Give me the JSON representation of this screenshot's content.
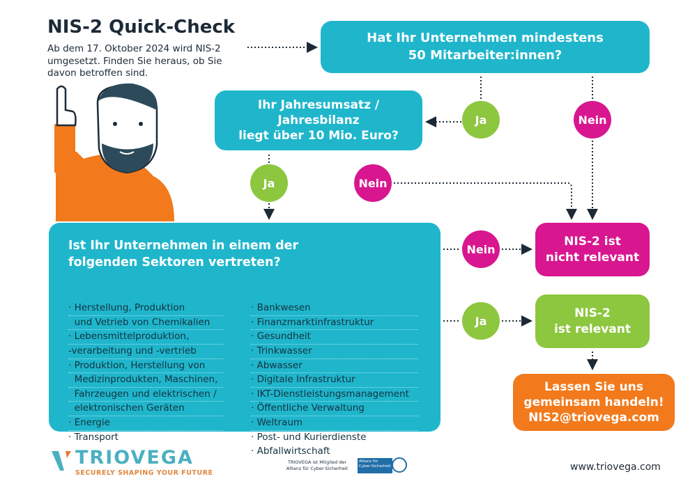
{
  "title": "NIS-2 Quick-Check",
  "subtitle": "Ab dem 17. Oktober 2024 wird NIS-2 umgesetzt. Finden Sie heraus, ob Sie davon betroffen sind.",
  "q1": [
    "Hat Ihr Unternehmen mindestens",
    "50 Mitarbeiter:innen?"
  ],
  "q2": [
    "Ihr Jahresumsatz /",
    "Jahresbilanz",
    "liegt über 10 Mio. Euro?"
  ],
  "q3": [
    "Ist Ihr Unternehmen in einem der",
    "folgenden Sektoren vertreten?"
  ],
  "yes": "Ja",
  "no": "Nein",
  "sectors_left": [
    "· Herstellung, Produktion",
    "  und Vetrieb von Chemikalien",
    "· Lebensmittelproduktion,",
    "-verarbeitung und -vertrieb",
    "· Produktion, Herstellung von",
    "  Medizinprodukten, Maschinen,",
    "  Fahrzeugen und elektrischen /",
    "  elektronischen Geräten",
    "· Energie",
    "· Transport"
  ],
  "sectors_right": [
    "· Bankwesen",
    "· Finanzmarktinfrastruktur",
    "· Gesundheit",
    "· Trinkwasser",
    "· Abwasser",
    "· Digitale Infrastruktur",
    "· IKT-Dienstleistungsmanagement",
    "· Öffentliche Verwaltung",
    "· Weltraum",
    "· Post- und Kurierdienste",
    "· Abfallwirtschaft"
  ],
  "not_relevant": [
    "NIS-2 ist",
    "nicht relevant"
  ],
  "relevant": [
    "NIS-2",
    "ist relevant"
  ],
  "cta": [
    "Lassen Sie uns",
    "gemeinsam handeln!",
    "NIS2@triovega.com"
  ],
  "footer": {
    "logo": "TRIOVEGA",
    "tagline": "SECURELY SHAPING YOUR FUTURE",
    "member": [
      "TRIOVEGA ist Mitglied der",
      "Allianz für Cyber-Sicherheit"
    ],
    "badge": "Allianz für Cyber-Sicherheit",
    "website": "www.triovega.com"
  },
  "colors": {
    "teal": "#1fb6cc",
    "green": "#8dc63f",
    "pink": "#d8168f",
    "orange": "#f27a1c"
  }
}
